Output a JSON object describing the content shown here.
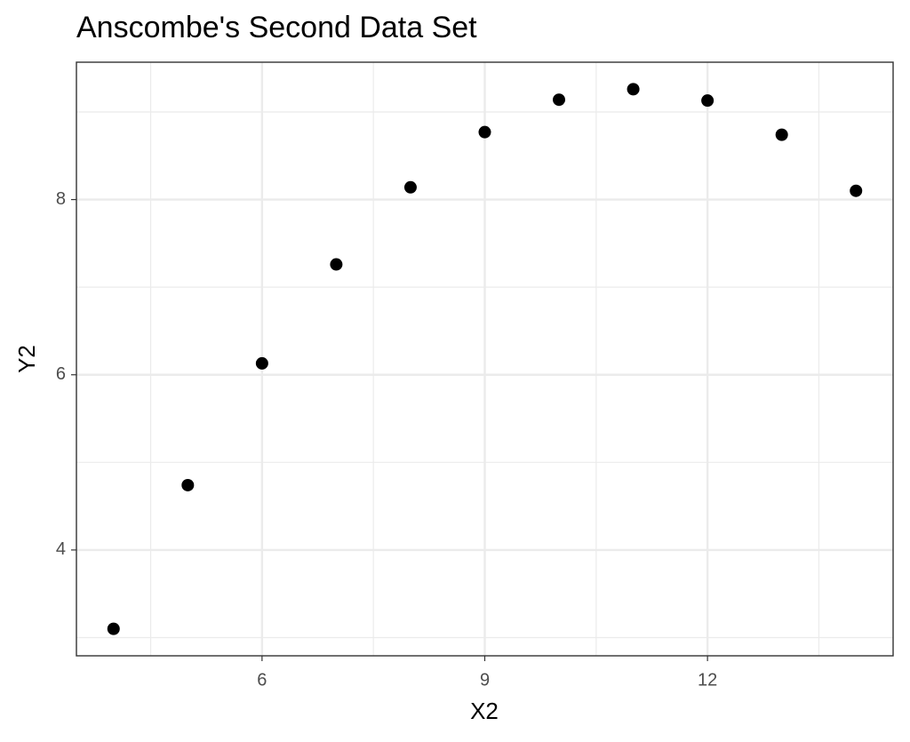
{
  "chart_data": {
    "type": "scatter",
    "title": "Anscombe's Second Data Set",
    "x_label": "X2",
    "y_label": "Y2",
    "x": [
      10,
      8,
      13,
      9,
      11,
      14,
      6,
      4,
      12,
      7,
      5
    ],
    "y": [
      9.14,
      8.14,
      8.74,
      8.77,
      9.26,
      8.1,
      6.13,
      3.1,
      9.13,
      7.26,
      4.74
    ],
    "color": "#000000",
    "xlim": [
      3.5,
      14.5
    ],
    "ylim": [
      2.792,
      9.568
    ],
    "xticks": [
      6,
      9,
      12
    ],
    "yticks": [
      4,
      6,
      8
    ],
    "x_minor_ticks": [
      4.5,
      7.5,
      10.5,
      13.5
    ],
    "y_minor_ticks": [
      3,
      5,
      7,
      9
    ],
    "grid": true
  }
}
